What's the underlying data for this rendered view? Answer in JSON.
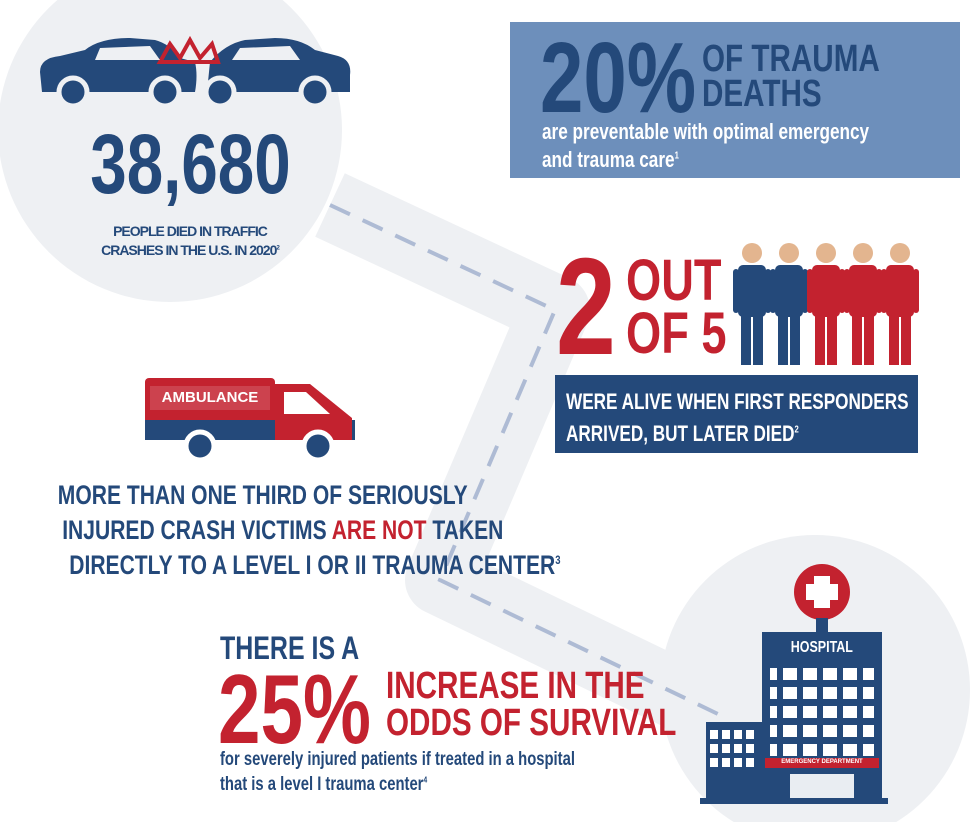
{
  "crash": {
    "number": "38,680",
    "caption_lines": [
      "PEOPLE DIED IN TRAFFIC",
      "CRASHES IN THE U.S. IN 2020"
    ],
    "footnote": "2"
  },
  "trauma": {
    "percent": "20%",
    "title_lines": [
      "OF TRAUMA",
      "DEATHS"
    ],
    "text_lines": [
      "are preventable with optimal emergency",
      "and trauma care"
    ],
    "footnote": "1"
  },
  "responders": {
    "number": "2",
    "ratio_lines": [
      "OUT",
      "OF 5"
    ],
    "text_lines": [
      "WERE ALIVE WHEN FIRST RESPONDERS",
      "ARRIVED, BUT LATER DIED"
    ],
    "footnote": "2"
  },
  "ambulance": {
    "label": "AMBULANCE",
    "line1": "MORE THAN ONE THIRD OF SERIOUSLY",
    "line2_start": "INJURED CRASH VICTIMS ",
    "line2_highlight": "ARE NOT",
    "line2_end": " TAKEN",
    "line3": "DIRECTLY TO A LEVEL I OR II TRAUMA CENTER",
    "footnote": "3"
  },
  "survival": {
    "intro": "THERE IS A",
    "percent": "25%",
    "title_lines": [
      "INCREASE IN THE",
      "ODDS OF SURVIVAL"
    ],
    "text_lines": [
      "for severely injured patients if treated in a hospital",
      "that is a level I trauma center"
    ],
    "footnote": "4"
  },
  "hospital": {
    "label": "HOSPITAL",
    "department": "EMERGENCY DEPARTMENT"
  }
}
